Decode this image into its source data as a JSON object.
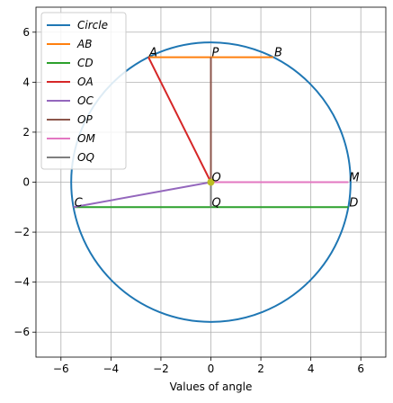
{
  "chart_data": {
    "type": "line",
    "title": "",
    "xlabel": "Values of angle",
    "ylabel": "",
    "xlim": [
      -7,
      7
    ],
    "ylim": [
      -7,
      7
    ],
    "xticks": [
      -6,
      -4,
      -2,
      0,
      2,
      4,
      6
    ],
    "yticks": [
      -6,
      -4,
      -2,
      0,
      2,
      4,
      6
    ],
    "xtick_labels": [
      "−6",
      "−4",
      "−2",
      "0",
      "2",
      "4",
      "6"
    ],
    "ytick_labels": [
      "−6",
      "−4",
      "−2",
      "0",
      "2",
      "4",
      "6"
    ],
    "grid": true,
    "legend_position": "upper-left",
    "circle": {
      "center": [
        0,
        0
      ],
      "radius": 5.59
    },
    "series": [
      {
        "name": "Circle",
        "color": "#1f77b4",
        "kind": "circle"
      },
      {
        "name": "AB",
        "color": "#ff7f0e",
        "x": [
          -2.5,
          2.5
        ],
        "y": [
          5,
          5
        ]
      },
      {
        "name": "CD",
        "color": "#2ca02c",
        "x": [
          -5.5,
          5.5
        ],
        "y": [
          -1,
          -1
        ]
      },
      {
        "name": "OA",
        "color": "#d62728",
        "x": [
          0,
          -2.5
        ],
        "y": [
          0,
          5
        ]
      },
      {
        "name": "OC",
        "color": "#9467bd",
        "x": [
          0,
          -5.5
        ],
        "y": [
          0,
          -1
        ]
      },
      {
        "name": "OP",
        "color": "#8c564b",
        "x": [
          0,
          0
        ],
        "y": [
          0,
          5
        ]
      },
      {
        "name": "OM",
        "color": "#e377c2",
        "x": [
          0,
          5.5
        ],
        "y": [
          0,
          0
        ]
      },
      {
        "name": "OQ",
        "color": "#7f7f7f",
        "x": [
          0,
          0
        ],
        "y": [
          0,
          -1
        ]
      }
    ],
    "center_marker": {
      "x": 0,
      "y": 0,
      "color": "#bcbd22"
    },
    "point_labels": [
      {
        "label": "A",
        "x": -2.5,
        "y": 5
      },
      {
        "label": "B",
        "x": 2.5,
        "y": 5
      },
      {
        "label": "P",
        "x": 0,
        "y": 5
      },
      {
        "label": "O",
        "x": 0,
        "y": 0
      },
      {
        "label": "M",
        "x": 5.5,
        "y": 0
      },
      {
        "label": "C",
        "x": -5.5,
        "y": -1
      },
      {
        "label": "D",
        "x": 5.5,
        "y": -1
      },
      {
        "label": "Q",
        "x": 0,
        "y": -1
      }
    ]
  }
}
